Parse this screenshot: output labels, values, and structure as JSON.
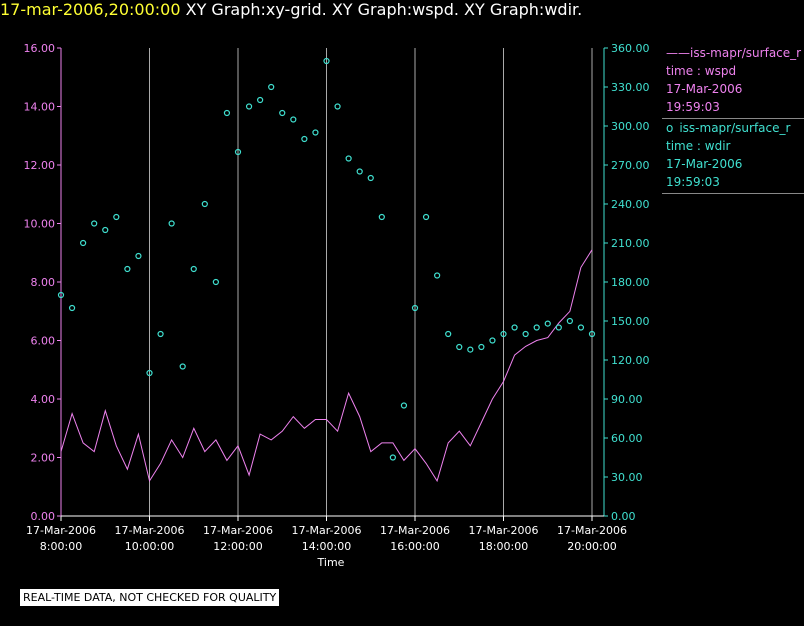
{
  "title": {
    "time": "17-mar-2006,20:00:00",
    "text": "XY Graph:xy-grid.  XY Graph:wspd.  XY Graph:wdir."
  },
  "legend": {
    "wspd": {
      "marker": "——",
      "name": "iss-mapr/surface_r",
      "var": "time : wspd",
      "date": "17-Mar-2006",
      "time": "19:59:03"
    },
    "wdir": {
      "marker": "o",
      "name": "iss-mapr/surface_r",
      "var": "time : wdir",
      "date": "17-Mar-2006",
      "time": "19:59:03"
    }
  },
  "notice": "REAL-TIME DATA, NOT CHECKED FOR QUALITY",
  "colors": {
    "wspd": "#ee82ee",
    "wdir": "#40e0d0",
    "title_time": "#ffff33",
    "grid": "#aaaaaa"
  },
  "chart_data": {
    "type": "line",
    "xlabel": "Time",
    "x_ticks": [
      {
        "date": "17-Mar-2006",
        "time": "8:00:00",
        "hour": 8
      },
      {
        "date": "17-Mar-2006",
        "time": "10:00:00",
        "hour": 10
      },
      {
        "date": "17-Mar-2006",
        "time": "12:00:00",
        "hour": 12
      },
      {
        "date": "17-Mar-2006",
        "time": "14:00:00",
        "hour": 14
      },
      {
        "date": "17-Mar-2006",
        "time": "16:00:00",
        "hour": 16
      },
      {
        "date": "17-Mar-2006",
        "time": "18:00:00",
        "hour": 18
      },
      {
        "date": "17-Mar-2006",
        "time": "20:00:00",
        "hour": 20
      }
    ],
    "xlim_hours": [
      8,
      20
    ],
    "y_left": {
      "ylim": [
        0,
        16
      ],
      "ticks": [
        "0.00",
        "2.00",
        "4.00",
        "6.00",
        "8.00",
        "10.00",
        "12.00",
        "14.00",
        "16.00"
      ]
    },
    "y_right": {
      "ylim": [
        0,
        360
      ],
      "ticks": [
        "0.00",
        "30.00",
        "60.00",
        "90.00",
        "120.00",
        "150.00",
        "180.00",
        "210.00",
        "240.00",
        "270.00",
        "300.00",
        "330.00",
        "360.00"
      ]
    },
    "grid_x": true,
    "series": [
      {
        "name": "iss-mapr/surface_r time : wspd",
        "style": "line",
        "axis": "left",
        "x": [
          8.0,
          8.25,
          8.5,
          8.75,
          9.0,
          9.25,
          9.5,
          9.75,
          10.0,
          10.25,
          10.5,
          10.75,
          11.0,
          11.25,
          11.5,
          11.75,
          12.0,
          12.25,
          12.5,
          12.75,
          13.0,
          13.25,
          13.5,
          13.75,
          14.0,
          14.25,
          14.5,
          14.75,
          15.0,
          15.25,
          15.5,
          15.75,
          16.0,
          16.25,
          16.5,
          16.75,
          17.0,
          17.25,
          17.5,
          17.75,
          18.0,
          18.25,
          18.5,
          18.75,
          19.0,
          19.25,
          19.5,
          19.75,
          20.0
        ],
        "y": [
          2.2,
          3.5,
          2.5,
          2.2,
          3.6,
          2.4,
          1.6,
          2.8,
          1.2,
          1.8,
          2.6,
          2.0,
          3.0,
          2.2,
          2.6,
          1.9,
          2.4,
          1.4,
          2.8,
          2.6,
          2.9,
          3.4,
          3.0,
          3.3,
          3.3,
          2.9,
          4.2,
          3.4,
          2.2,
          2.5,
          2.5,
          1.9,
          2.3,
          1.8,
          1.2,
          2.5,
          2.9,
          2.4,
          3.2,
          4.0,
          4.6,
          5.5,
          5.8,
          6.0,
          6.1,
          6.6,
          7.0,
          8.5,
          9.1
        ]
      },
      {
        "name": "iss-mapr/surface_r time : wdir",
        "style": "points",
        "axis": "right",
        "x": [
          8.0,
          8.25,
          8.5,
          8.75,
          9.0,
          9.25,
          9.5,
          9.75,
          10.0,
          10.25,
          10.5,
          10.75,
          11.0,
          11.25,
          11.5,
          11.75,
          12.0,
          12.25,
          12.5,
          12.75,
          13.0,
          13.25,
          13.5,
          13.75,
          14.0,
          14.25,
          14.5,
          14.75,
          15.0,
          15.25,
          15.5,
          15.75,
          16.0,
          16.25,
          16.5,
          16.75,
          17.0,
          17.25,
          17.5,
          17.75,
          18.0,
          18.25,
          18.5,
          18.75,
          19.0,
          19.25,
          19.5,
          19.75,
          20.0
        ],
        "y": [
          170,
          160,
          210,
          225,
          220,
          230,
          190,
          200,
          110,
          140,
          225,
          115,
          190,
          240,
          180,
          310,
          280,
          315,
          320,
          330,
          310,
          305,
          290,
          295,
          350,
          315,
          275,
          265,
          260,
          230,
          45,
          85,
          160,
          230,
          185,
          140,
          130,
          128,
          130,
          135,
          140,
          145,
          140,
          145,
          148,
          145,
          150,
          145,
          140
        ]
      }
    ]
  }
}
